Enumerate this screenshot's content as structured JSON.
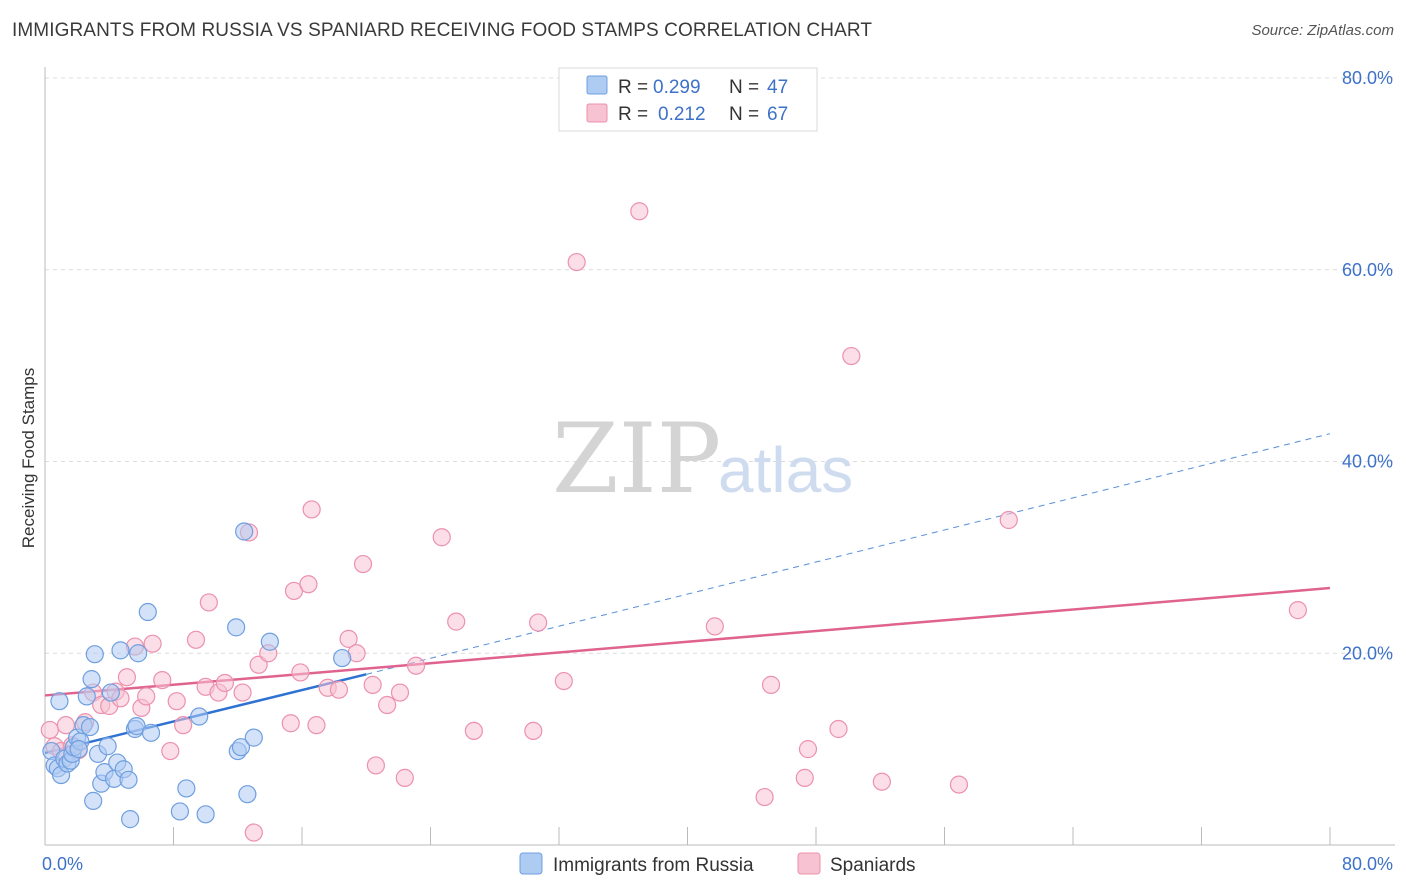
{
  "header": {
    "title": "IMMIGRANTS FROM RUSSIA VS SPANIARD RECEIVING FOOD STAMPS CORRELATION CHART",
    "source": "Source: ZipAtlas.com"
  },
  "watermark": {
    "zip": "ZIP",
    "atlas": "atlas"
  },
  "colors": {
    "russia_fill": "#aecbf2",
    "russia_stroke": "#6f9fe0",
    "russia_line": "#2e72d2",
    "spain_fill": "#f7c3d3",
    "spain_stroke": "#ec91ae",
    "spain_line": "#e0628e",
    "axis_text": "#3d72c8"
  },
  "legend_box": {
    "rows": [
      {
        "r_label": "R =",
        "r_value": "0.299",
        "n_label": "N =",
        "n_value": "47",
        "series": "russia"
      },
      {
        "r_label": "R =",
        "r_value": "0.212",
        "n_label": "N =",
        "n_value": "67",
        "series": "spain"
      }
    ]
  },
  "chart_data": {
    "type": "scatter",
    "title": "IMMIGRANTS FROM RUSSIA VS SPANIARD RECEIVING FOOD STAMPS CORRELATION CHART",
    "xlabel": "",
    "ylabel": "Receiving Food Stamps",
    "xlim": [
      0,
      80
    ],
    "ylim": [
      0,
      80
    ],
    "x_tick_labels": [
      "0.0%",
      "80.0%"
    ],
    "y_ticks": [
      20,
      40,
      60,
      80
    ],
    "y_tick_labels": [
      "20.0%",
      "40.0%",
      "60.0%",
      "80.0%"
    ],
    "grid": true,
    "legend": [
      "Immigrants from Russia",
      "Spaniards"
    ],
    "legend_position": "bottom",
    "series": [
      {
        "name": "Immigrants from Russia",
        "key": "russia",
        "points": [
          [
            0.4,
            9.8
          ],
          [
            0.6,
            8.3
          ],
          [
            0.8,
            8.0
          ],
          [
            0.9,
            15.0
          ],
          [
            1.0,
            7.3
          ],
          [
            1.2,
            9.0
          ],
          [
            1.4,
            8.5
          ],
          [
            1.6,
            8.8
          ],
          [
            1.7,
            9.5
          ],
          [
            1.8,
            10.2
          ],
          [
            2.0,
            11.2
          ],
          [
            2.2,
            10.8
          ],
          [
            2.4,
            12.5
          ],
          [
            2.6,
            15.5
          ],
          [
            2.8,
            12.3
          ],
          [
            2.9,
            17.3
          ],
          [
            3.0,
            4.6
          ],
          [
            3.1,
            19.9
          ],
          [
            3.3,
            9.5
          ],
          [
            3.5,
            6.4
          ],
          [
            3.7,
            7.6
          ],
          [
            3.9,
            10.3
          ],
          [
            4.1,
            15.9
          ],
          [
            4.3,
            6.9
          ],
          [
            4.5,
            8.6
          ],
          [
            4.7,
            20.3
          ],
          [
            4.9,
            7.9
          ],
          [
            5.2,
            6.8
          ],
          [
            5.3,
            2.7
          ],
          [
            5.6,
            12.1
          ],
          [
            5.7,
            12.4
          ],
          [
            5.8,
            20.0
          ],
          [
            6.4,
            24.3
          ],
          [
            6.6,
            11.7
          ],
          [
            8.4,
            3.5
          ],
          [
            8.8,
            5.9
          ],
          [
            9.6,
            13.4
          ],
          [
            10.0,
            3.2
          ],
          [
            11.9,
            22.7
          ],
          [
            12.0,
            9.8
          ],
          [
            12.2,
            10.2
          ],
          [
            12.4,
            32.7
          ],
          [
            12.6,
            5.3
          ],
          [
            13.0,
            11.2
          ],
          [
            14.0,
            21.2
          ],
          [
            18.5,
            19.5
          ],
          [
            2.1,
            10.0
          ]
        ]
      },
      {
        "name": "Spaniards",
        "key": "spain",
        "points": [
          [
            0.3,
            12.0
          ],
          [
            0.6,
            10.3
          ],
          [
            1.0,
            9.8
          ],
          [
            1.3,
            12.5
          ],
          [
            1.7,
            10.4
          ],
          [
            2.1,
            9.9
          ],
          [
            2.5,
            12.8
          ],
          [
            3.0,
            15.9
          ],
          [
            3.5,
            14.6
          ],
          [
            4.0,
            14.5
          ],
          [
            4.4,
            16.0
          ],
          [
            4.7,
            15.3
          ],
          [
            5.1,
            17.5
          ],
          [
            5.6,
            20.7
          ],
          [
            6.0,
            14.3
          ],
          [
            6.3,
            15.5
          ],
          [
            6.7,
            21.0
          ],
          [
            7.3,
            17.2
          ],
          [
            7.8,
            9.8
          ],
          [
            8.2,
            15.0
          ],
          [
            8.6,
            12.5
          ],
          [
            9.4,
            21.4
          ],
          [
            10.0,
            16.5
          ],
          [
            10.2,
            25.3
          ],
          [
            10.8,
            15.9
          ],
          [
            11.2,
            16.9
          ],
          [
            12.3,
            15.9
          ],
          [
            12.7,
            32.6
          ],
          [
            13.3,
            18.8
          ],
          [
            13.9,
            20.0
          ],
          [
            13.0,
            1.3
          ],
          [
            15.3,
            12.7
          ],
          [
            15.5,
            26.5
          ],
          [
            15.9,
            18.0
          ],
          [
            16.4,
            27.2
          ],
          [
            16.6,
            35.0
          ],
          [
            16.9,
            12.5
          ],
          [
            17.6,
            16.4
          ],
          [
            18.3,
            16.2
          ],
          [
            18.9,
            21.5
          ],
          [
            19.4,
            20.0
          ],
          [
            19.8,
            29.3
          ],
          [
            20.4,
            16.7
          ],
          [
            20.6,
            8.3
          ],
          [
            21.3,
            14.6
          ],
          [
            22.1,
            15.9
          ],
          [
            22.4,
            7.0
          ],
          [
            23.1,
            18.7
          ],
          [
            24.7,
            32.1
          ],
          [
            25.6,
            23.3
          ],
          [
            26.7,
            11.9
          ],
          [
            30.4,
            11.9
          ],
          [
            30.7,
            23.2
          ],
          [
            32.3,
            17.1
          ],
          [
            33.1,
            60.8
          ],
          [
            37.0,
            66.1
          ],
          [
            41.7,
            22.8
          ],
          [
            44.8,
            5.0
          ],
          [
            45.2,
            16.7
          ],
          [
            47.3,
            7.0
          ],
          [
            47.5,
            10.0
          ],
          [
            49.4,
            12.1
          ],
          [
            50.2,
            51.0
          ],
          [
            52.1,
            6.6
          ],
          [
            56.9,
            6.3
          ],
          [
            60.0,
            33.9
          ],
          [
            78.0,
            24.5
          ]
        ]
      }
    ],
    "trend_lines": [
      {
        "series": "russia",
        "style": "solid",
        "from": [
          0,
          9.6
        ],
        "to": [
          20,
          17.8
        ]
      },
      {
        "series": "russia",
        "style": "dashed",
        "from": [
          20,
          17.8
        ],
        "to": [
          80,
          42.9
        ]
      },
      {
        "series": "spain",
        "style": "solid",
        "from": [
          0,
          15.6
        ],
        "to": [
          80,
          26.8
        ]
      }
    ]
  }
}
